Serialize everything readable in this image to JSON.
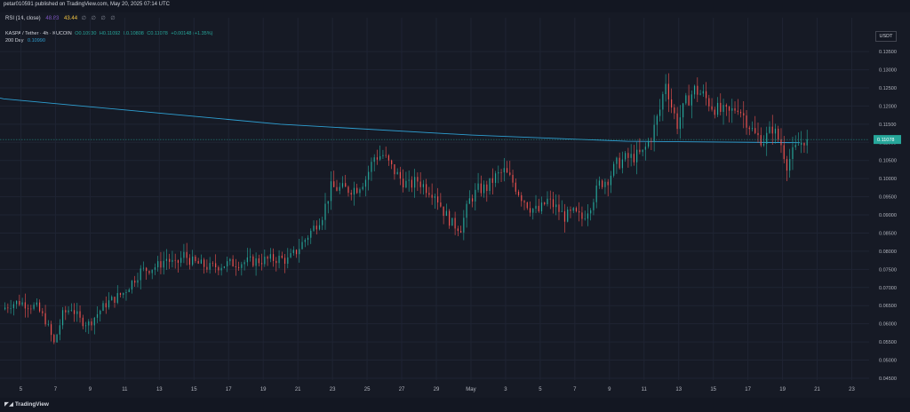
{
  "header": {
    "publisher_note": "petar010591 published on TradingView.com, May 20, 2025 07:14 UTC"
  },
  "rsi_legend": {
    "label": "RSI (14, close)",
    "value_1": "48.83",
    "value_2": "43.44",
    "empty_marks": "∅ ∅ ∅ ∅"
  },
  "symbol_legend": {
    "title": "KASPA / Tether · 4h · KUCOIN",
    "open": "O0.10930",
    "high": "H0.11092",
    "low": "L0.10808",
    "close": "C0.11078",
    "change": "+0.00148 (+1.35%)"
  },
  "ma_legend": {
    "label": "200 Day",
    "value": "0.10990"
  },
  "currency": "USDT",
  "footer": {
    "brand": "TradingView"
  },
  "colors": {
    "up": "#26a69a",
    "down": "#ef5350",
    "ma": "#2e9fd1",
    "price_label_bg": "#26a69a",
    "background": "#161a25",
    "grid": "#1f2433"
  },
  "chart_data": {
    "type": "candlestick",
    "symbol": "KASPA/USDT",
    "timeframe": "4h",
    "exchange": "KUCOIN",
    "y_ticks": [
      "0.04500",
      "0.05000",
      "0.05500",
      "0.06000",
      "0.06500",
      "0.07000",
      "0.07500",
      "0.08000",
      "0.08500",
      "0.09000",
      "0.09500",
      "0.10000",
      "0.10500",
      "0.11000",
      "0.11500",
      "0.12000",
      "0.12500",
      "0.13000",
      "0.13500"
    ],
    "ylim": [
      0.0445,
      0.1365
    ],
    "x_ticks": [
      "5",
      "7",
      "9",
      "11",
      "13",
      "15",
      "17",
      "19",
      "21",
      "23",
      "25",
      "27",
      "29",
      "May",
      "3",
      "5",
      "7",
      "9",
      "11",
      "13",
      "15",
      "17",
      "19",
      "21",
      "23"
    ],
    "x_tick_dates": [
      "2025-04-05",
      "2025-04-07",
      "2025-04-09",
      "2025-04-11",
      "2025-04-13",
      "2025-04-15",
      "2025-04-17",
      "2025-04-19",
      "2025-04-21",
      "2025-04-23",
      "2025-04-25",
      "2025-04-27",
      "2025-04-29",
      "2025-05-01",
      "2025-05-03",
      "2025-05-05",
      "2025-05-07",
      "2025-05-09",
      "2025-05-11",
      "2025-05-13",
      "2025-05-15",
      "2025-05-17",
      "2025-05-19",
      "2025-05-21",
      "2025-05-23"
    ],
    "xlim": [
      "2025-04-04",
      "2025-05-24"
    ],
    "current_price": "0.11078",
    "grid": true,
    "price_path": [
      [
        "2025-04-04",
        0.064
      ],
      [
        "2025-04-04T12:00",
        0.0655
      ],
      [
        "2025-04-05",
        0.066
      ],
      [
        "2025-04-06",
        0.0645
      ],
      [
        "2025-04-06T12:00",
        0.061
      ],
      [
        "2025-04-07",
        0.0545
      ],
      [
        "2025-04-07T12:00",
        0.0625
      ],
      [
        "2025-04-08",
        0.0645
      ],
      [
        "2025-04-08T12:00",
        0.061
      ],
      [
        "2025-04-09",
        0.06
      ],
      [
        "2025-04-10",
        0.0655
      ],
      [
        "2025-04-11",
        0.0685
      ],
      [
        "2025-04-12",
        0.0745
      ],
      [
        "2025-04-13",
        0.076
      ],
      [
        "2025-04-13T12:00",
        0.078
      ],
      [
        "2025-04-14",
        0.076
      ],
      [
        "2025-04-14T12:00",
        0.079
      ],
      [
        "2025-04-15",
        0.077
      ],
      [
        "2025-04-16",
        0.0755
      ],
      [
        "2025-04-17",
        0.0765
      ],
      [
        "2025-04-18",
        0.077
      ],
      [
        "2025-04-19",
        0.0775
      ],
      [
        "2025-04-20",
        0.078
      ],
      [
        "2025-04-20T12:00",
        0.0775
      ],
      [
        "2025-04-21",
        0.08
      ],
      [
        "2025-04-22",
        0.0865
      ],
      [
        "2025-04-22T12:00",
        0.09
      ],
      [
        "2025-04-23",
        0.0975
      ],
      [
        "2025-04-24",
        0.097
      ],
      [
        "2025-04-24T12:00",
        0.0975
      ],
      [
        "2025-04-25",
        0.1
      ],
      [
        "2025-04-25T12:00",
        0.106
      ],
      [
        "2025-04-26",
        0.1065
      ],
      [
        "2025-04-26T12:00",
        0.103
      ],
      [
        "2025-04-27",
        0.1
      ],
      [
        "2025-04-27T12:00",
        0.098
      ],
      [
        "2025-04-28",
        0.0995
      ],
      [
        "2025-04-28T12:00",
        0.0975
      ],
      [
        "2025-04-29",
        0.096
      ],
      [
        "2025-04-29T12:00",
        0.091
      ],
      [
        "2025-04-30",
        0.0875
      ],
      [
        "2025-04-30T12:00",
        0.0865
      ],
      [
        "2025-05-01",
        0.094
      ],
      [
        "2025-05-01T12:00",
        0.097
      ],
      [
        "2025-05-02",
        0.0975
      ],
      [
        "2025-05-02T12:00",
        0.1005
      ],
      [
        "2025-05-03",
        0.102
      ],
      [
        "2025-05-03T12:00",
        0.099
      ],
      [
        "2025-05-04",
        0.095
      ],
      [
        "2025-05-04T12:00",
        0.092
      ],
      [
        "2025-05-05",
        0.091
      ],
      [
        "2025-05-05T12:00",
        0.094
      ],
      [
        "2025-05-06",
        0.092
      ],
      [
        "2025-05-06T12:00",
        0.0895
      ],
      [
        "2025-05-07",
        0.0905
      ],
      [
        "2025-05-07T12:00",
        0.089
      ],
      [
        "2025-05-08",
        0.093
      ],
      [
        "2025-05-08T12:00",
        0.0985
      ],
      [
        "2025-05-09",
        0.1
      ],
      [
        "2025-05-09T12:00",
        0.104
      ],
      [
        "2025-05-10",
        0.1055
      ],
      [
        "2025-05-10T12:00",
        0.106
      ],
      [
        "2025-05-11",
        0.107
      ],
      [
        "2025-05-11T12:00",
        0.1115
      ],
      [
        "2025-05-12",
        0.119
      ],
      [
        "2025-05-12T08:00",
        0.127
      ],
      [
        "2025-05-12T16:00",
        0.12
      ],
      [
        "2025-05-13",
        0.115
      ],
      [
        "2025-05-13T12:00",
        0.121
      ],
      [
        "2025-05-14",
        0.1245
      ],
      [
        "2025-05-14T12:00",
        0.123
      ],
      [
        "2025-05-15",
        0.12
      ],
      [
        "2025-05-15T12:00",
        0.1185
      ],
      [
        "2025-05-16",
        0.118
      ],
      [
        "2025-05-16T12:00",
        0.12
      ],
      [
        "2025-05-17",
        0.116
      ],
      [
        "2025-05-17T12:00",
        0.112
      ],
      [
        "2025-05-18",
        0.1105
      ],
      [
        "2025-05-18T12:00",
        0.114
      ],
      [
        "2025-05-19",
        0.1095
      ],
      [
        "2025-05-19T08:00",
        0.104
      ],
      [
        "2025-05-19T16:00",
        0.107
      ],
      [
        "2025-05-20",
        0.1093
      ],
      [
        "2025-05-20T08:00",
        0.1108
      ]
    ],
    "moving_average": {
      "name": "200 Day",
      "points": [
        [
          "2025-04-04",
          0.122
        ],
        [
          "2025-04-20",
          0.115
        ],
        [
          "2025-05-01",
          0.112
        ],
        [
          "2025-05-10",
          0.1103
        ],
        [
          "2025-05-20",
          0.1099
        ]
      ]
    }
  }
}
